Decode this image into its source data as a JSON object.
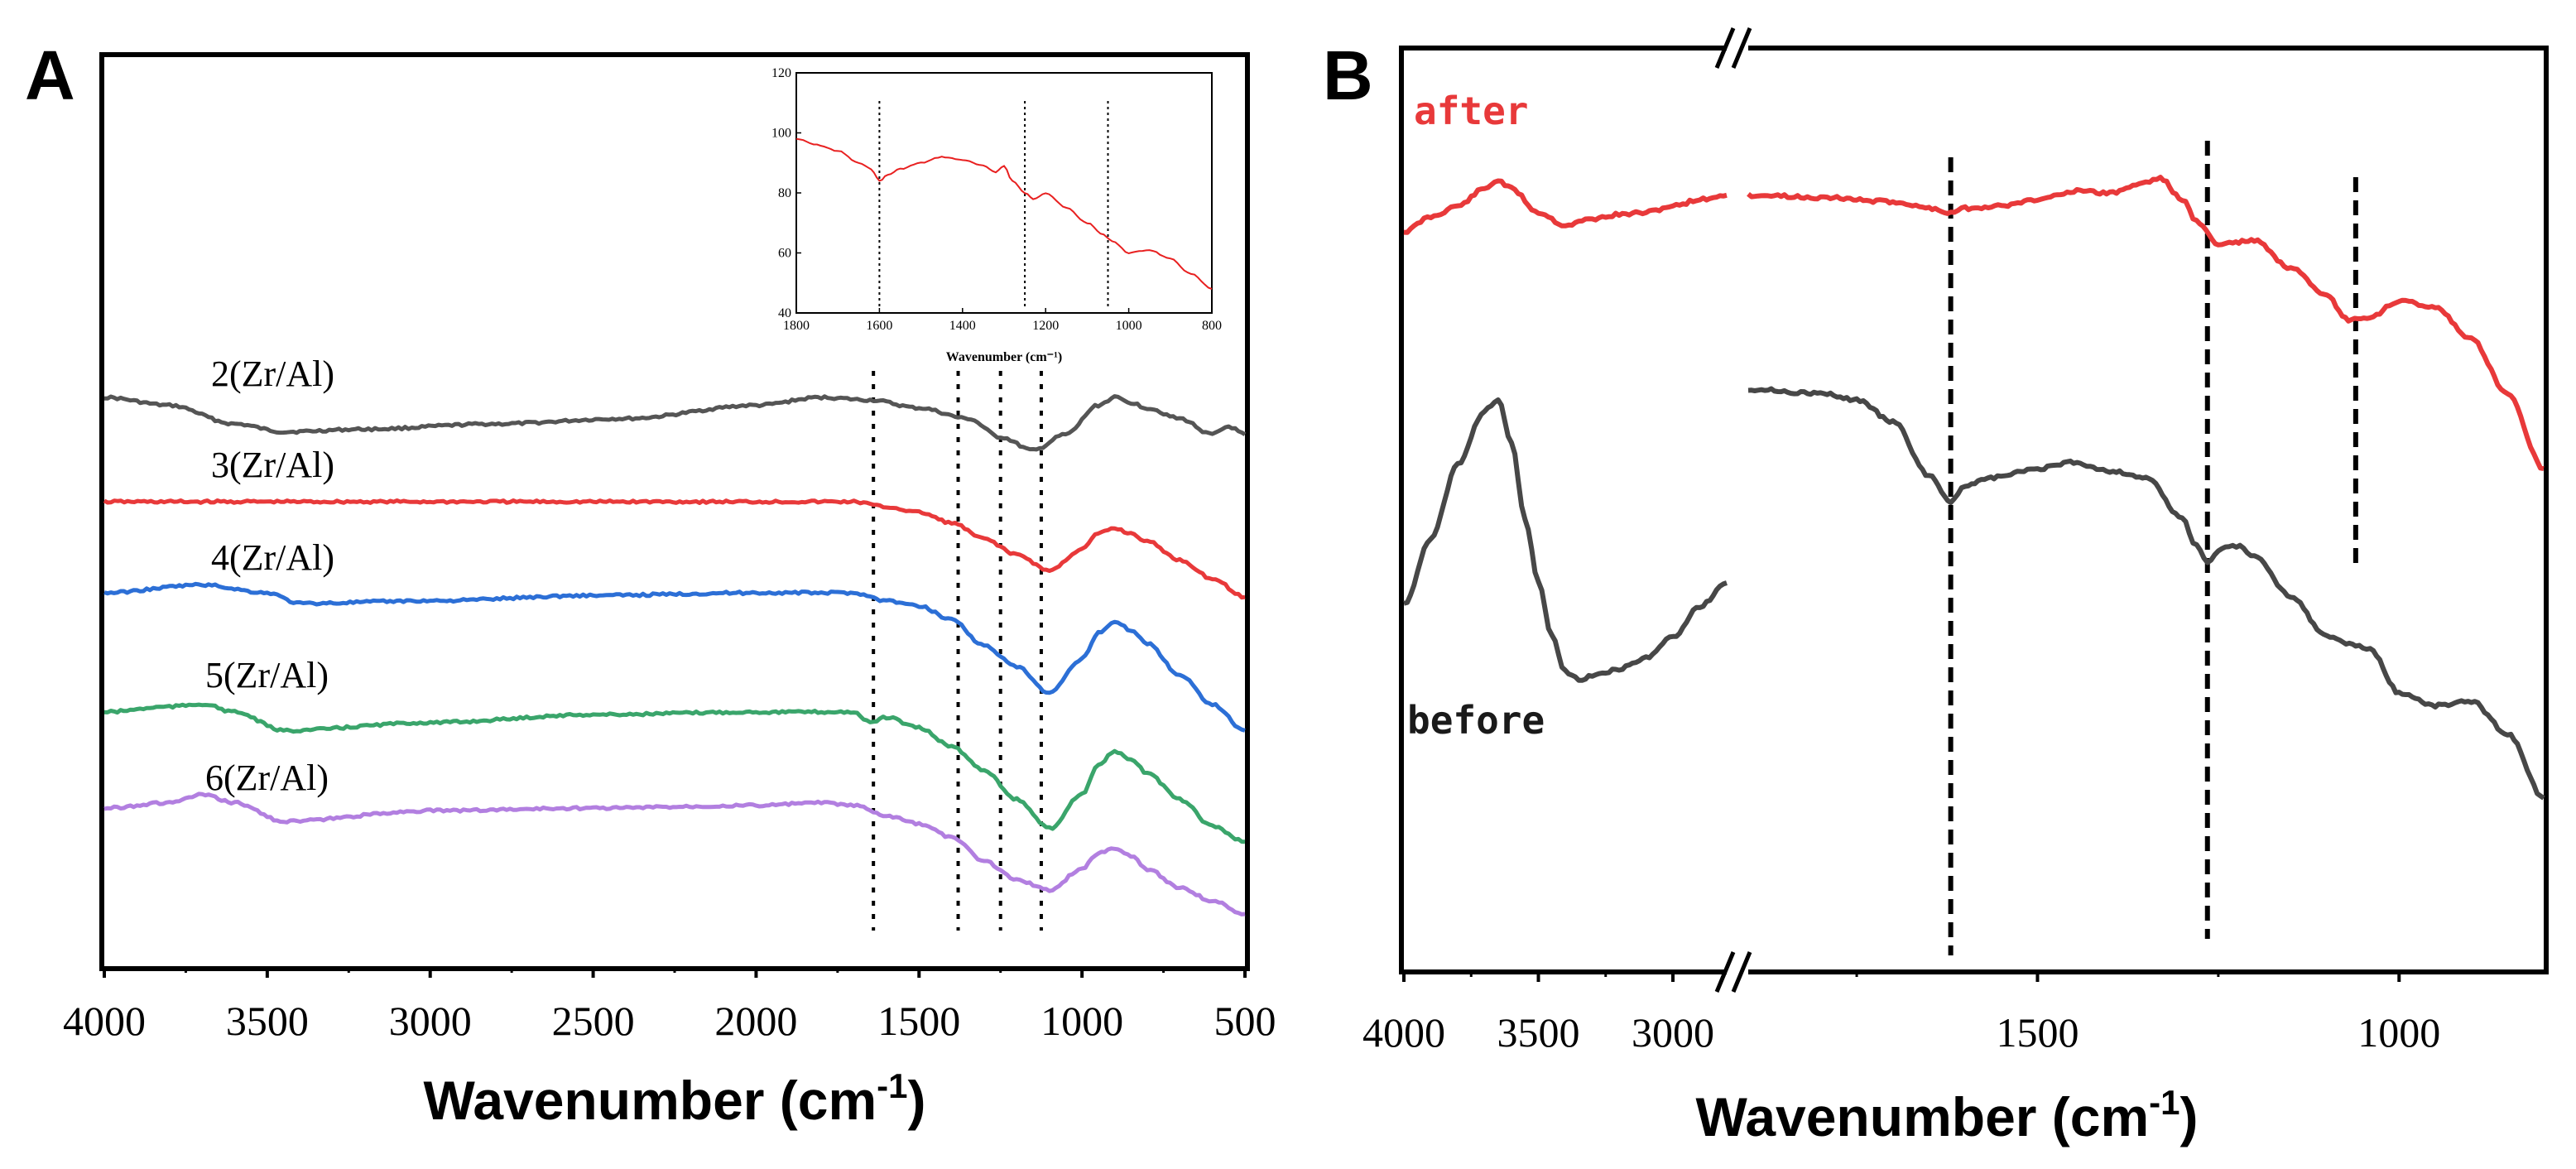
{
  "chart_data": [
    {
      "panel": "A",
      "type": "line",
      "xlabel": "Wavenumber (cm",
      "xlabel_sup": "-1",
      "xlabel_close": ")",
      "xlim": [
        4000,
        500
      ],
      "xticks": [
        4000,
        3500,
        3000,
        2500,
        2000,
        1500,
        1000,
        500
      ],
      "marker_lines": [
        1640,
        1380,
        1250,
        1125
      ],
      "series": [
        {
          "name": "2(Zr/Al)",
          "color": "#555555",
          "offset": 0,
          "x": [
            4000,
            3800,
            3600,
            3450,
            3200,
            2800,
            2400,
            2000,
            1800,
            1650,
            1500,
            1350,
            1250,
            1150,
            1050,
            950,
            900,
            850,
            800,
            700,
            600,
            550,
            500
          ],
          "y": [
            0,
            -6,
            -20,
            -26,
            -24,
            -20,
            -16,
            -6,
            0,
            -2,
            -8,
            -16,
            -30,
            -40,
            -28,
            -6,
            0,
            -4,
            -8,
            -16,
            -28,
            -22,
            -28
          ]
        },
        {
          "name": "3(Zr/Al)",
          "color": "#e8393a",
          "offset": 0,
          "x": [
            4000,
            3500,
            3000,
            2500,
            2000,
            1700,
            1600,
            1500,
            1400,
            1300,
            1200,
            1100,
            1000,
            950,
            900,
            850,
            800,
            700,
            600,
            500
          ],
          "y": [
            0,
            0,
            0,
            0,
            0,
            0,
            -4,
            -8,
            -16,
            -28,
            -40,
            -52,
            -36,
            -24,
            -20,
            -24,
            -30,
            -44,
            -58,
            -72
          ]
        },
        {
          "name": "4(Zr/Al)",
          "color": "#2c6fd6",
          "offset": 0,
          "x": [
            4000,
            3700,
            3500,
            3400,
            3000,
            2500,
            2000,
            1700,
            1600,
            1500,
            1400,
            1300,
            1200,
            1100,
            1000,
            950,
            900,
            850,
            800,
            700,
            600,
            500
          ],
          "y": [
            0,
            6,
            0,
            -8,
            -6,
            -2,
            0,
            0,
            -6,
            -10,
            -20,
            -40,
            -56,
            -76,
            -50,
            -30,
            -22,
            -28,
            -38,
            -62,
            -84,
            -104
          ]
        },
        {
          "name": "5(Zr/Al)",
          "color": "#3aa56b",
          "offset": 0,
          "x": [
            4000,
            3800,
            3700,
            3600,
            3450,
            3000,
            2500,
            2000,
            1700,
            1650,
            1600,
            1500,
            1400,
            1300,
            1200,
            1100,
            1000,
            950,
            900,
            850,
            800,
            700,
            600,
            500
          ],
          "y": [
            0,
            4,
            6,
            0,
            -14,
            -8,
            -2,
            0,
            0,
            -8,
            -4,
            -12,
            -26,
            -44,
            -66,
            -88,
            -62,
            -40,
            -30,
            -36,
            -46,
            -66,
            -86,
            -98
          ]
        },
        {
          "name": "6(Zr/Al)",
          "color": "#b27fe0",
          "offset": 0,
          "x": [
            4000,
            3800,
            3700,
            3600,
            3450,
            3000,
            2500,
            2000,
            1800,
            1700,
            1600,
            1500,
            1400,
            1300,
            1200,
            1100,
            1000,
            950,
            900,
            850,
            800,
            700,
            600,
            500
          ],
          "y": [
            0,
            4,
            10,
            4,
            -10,
            -2,
            0,
            2,
            4,
            2,
            -6,
            -12,
            -22,
            -40,
            -54,
            -62,
            -46,
            -34,
            -30,
            -36,
            -46,
            -60,
            -70,
            -80
          ]
        }
      ],
      "inset": {
        "xlabel": "Wavenumber (cm⁻¹)",
        "xlim": [
          1800,
          800
        ],
        "ylim": [
          40,
          120
        ],
        "xticks": [
          1800,
          1600,
          1400,
          1200,
          1000,
          800
        ],
        "yticks": [
          40,
          60,
          80,
          100,
          120
        ],
        "marker_lines": [
          1600,
          1250,
          1050
        ],
        "color": "#e82020",
        "x": [
          1800,
          1750,
          1700,
          1650,
          1620,
          1600,
          1580,
          1550,
          1500,
          1450,
          1400,
          1350,
          1320,
          1300,
          1280,
          1250,
          1230,
          1200,
          1150,
          1100,
          1060,
          1040,
          1000,
          950,
          900,
          850,
          800
        ],
        "y": [
          98,
          96,
          94,
          90,
          88,
          84,
          86,
          88,
          90,
          92,
          91,
          89,
          87,
          89,
          84,
          80,
          78,
          80,
          75,
          70,
          66,
          64,
          60,
          61,
          58,
          53,
          48
        ]
      }
    },
    {
      "panel": "B",
      "type": "line",
      "xlabel": "Wavenumber (cm",
      "xlabel_sup": "-1",
      "xlabel_close": ")",
      "xlim_left": [
        4000,
        2800
      ],
      "xlim_right": [
        1900,
        800
      ],
      "xticks_left": [
        4000,
        3500,
        3000
      ],
      "xticks_right": [
        1500,
        1000
      ],
      "marker_lines": [
        1620,
        1265,
        1060
      ],
      "series": [
        {
          "name": "after",
          "color": "#e8393a",
          "left_x": [
            4000,
            3900,
            3800,
            3700,
            3650,
            3600,
            3500,
            3400,
            3300,
            3200,
            3100,
            3000,
            2900,
            2800
          ],
          "left_y": [
            0,
            14,
            24,
            40,
            48,
            40,
            18,
            6,
            12,
            16,
            18,
            24,
            30,
            34
          ],
          "right_x": [
            1900,
            1800,
            1700,
            1650,
            1620,
            1600,
            1550,
            1500,
            1450,
            1400,
            1350,
            1330,
            1300,
            1280,
            1250,
            1230,
            1200,
            1150,
            1100,
            1070,
            1040,
            1000,
            950,
            900,
            850,
            800
          ],
          "right_y": [
            34,
            32,
            28,
            22,
            18,
            22,
            24,
            30,
            38,
            36,
            46,
            50,
            30,
            10,
            -12,
            -10,
            -8,
            -34,
            -60,
            -82,
            -80,
            -64,
            -70,
            -100,
            -150,
            -220
          ]
        },
        {
          "name": "before",
          "color": "#474747",
          "left_x": [
            4000,
            3900,
            3800,
            3700,
            3650,
            3600,
            3550,
            3500,
            3450,
            3400,
            3350,
            3300,
            3200,
            3100,
            3000,
            2900,
            2800
          ],
          "left_y": [
            0,
            60,
            130,
            180,
            190,
            150,
            80,
            20,
            -30,
            -62,
            -70,
            -66,
            -60,
            -50,
            -30,
            -2,
            20
          ],
          "right_x": [
            1900,
            1800,
            1750,
            1700,
            1650,
            1620,
            1600,
            1560,
            1500,
            1450,
            1400,
            1350,
            1300,
            1280,
            1265,
            1240,
            1220,
            1200,
            1150,
            1100,
            1060,
            1040,
            1000,
            950,
            900,
            850,
            800
          ],
          "right_y": [
            200,
            196,
            190,
            170,
            120,
            96,
            110,
            118,
            126,
            132,
            124,
            118,
            80,
            54,
            40,
            54,
            54,
            44,
            8,
            -30,
            -38,
            -42,
            -82,
            -94,
            -90,
            -120,
            -180
          ]
        }
      ]
    }
  ]
}
